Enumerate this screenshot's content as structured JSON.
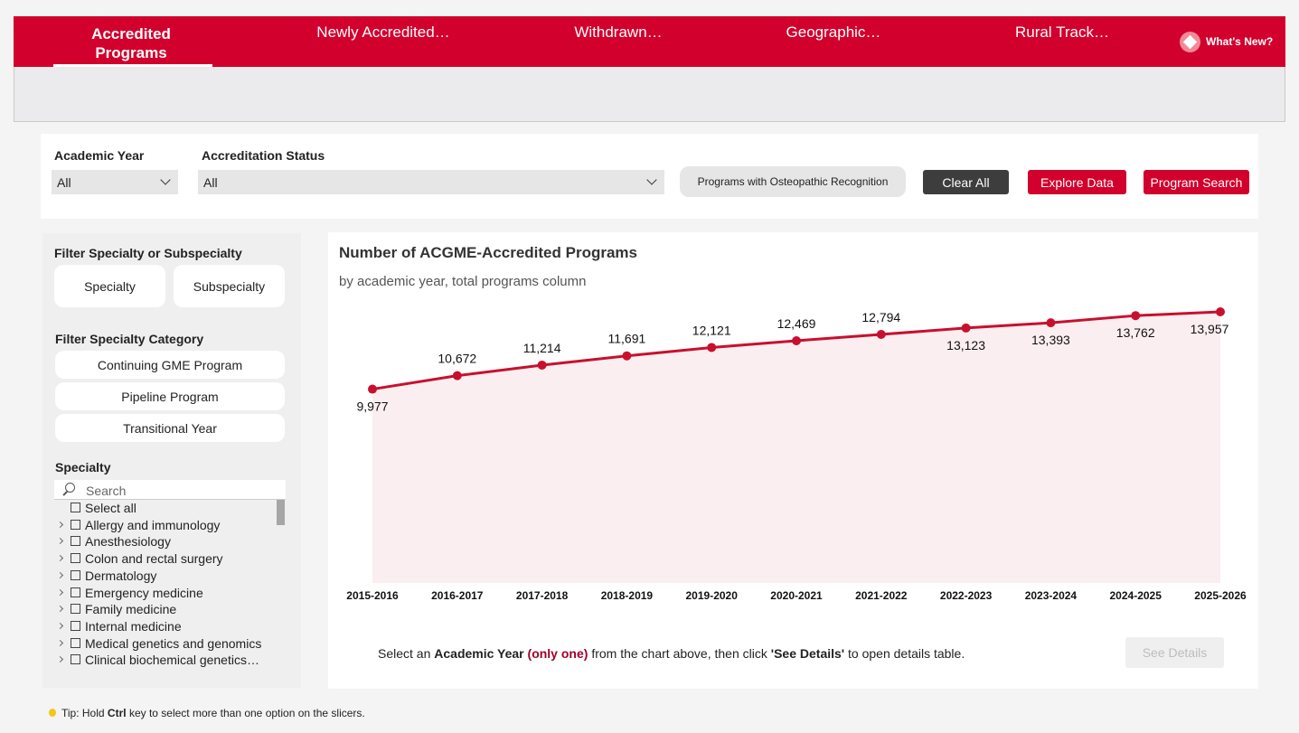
{
  "nav": {
    "tabs": [
      "Accredited Programs",
      "Newly Accredited…",
      "Withdrawn…",
      "Geographic…",
      "Rural Track…"
    ],
    "whats_new": "What's New?"
  },
  "filters": {
    "academic_year": {
      "label": "Academic Year",
      "value": "All"
    },
    "accreditation_status": {
      "label": "Accreditation Status",
      "value": "All"
    },
    "buttons": [
      "Programs with Osteopathic Recognition",
      "Clear All",
      "Explore Data",
      "Program Search"
    ]
  },
  "sidebar": {
    "filter_type": {
      "title": "Filter Specialty or Subspecialty",
      "options": [
        "Specialty",
        "Subspecialty"
      ]
    },
    "category": {
      "title": "Filter Specialty Category",
      "options": [
        "Continuing GME Program",
        "Pipeline Program",
        "Transitional Year"
      ]
    },
    "specialty": {
      "title": "Specialty",
      "search_placeholder": "Search",
      "items": [
        "Select all",
        "Allergy and immunology",
        "Anesthesiology",
        "Colon and rectal surgery",
        "Dermatology",
        "Emergency medicine",
        "Family medicine",
        "Internal medicine",
        "Medical genetics and genomics",
        "Clinical biochemical genetics…"
      ]
    }
  },
  "chart_data": {
    "type": "line",
    "title": "Number of ACGME-Accredited Programs",
    "subtitle": "by academic year, total programs column",
    "categories": [
      "2015-2016",
      "2016-2017",
      "2017-2018",
      "2018-2019",
      "2019-2020",
      "2020-2021",
      "2021-2022",
      "2022-2023",
      "2023-2024",
      "2024-2025",
      "2025-2026"
    ],
    "values": [
      9977,
      10672,
      11214,
      11691,
      12121,
      12469,
      12794,
      13123,
      13393,
      13762,
      13957
    ],
    "value_labels": [
      "9,977",
      "10,672",
      "11,214",
      "11,691",
      "12,121",
      "12,469",
      "12,794",
      "13,123",
      "13,393",
      "13,762",
      "13,957"
    ],
    "color": "#c8102e",
    "area_color": "#fbeef0"
  },
  "details": {
    "instruction": [
      "Select an",
      "Academic Year",
      "(only one)",
      "from the chart above, then click",
      "'See Details'",
      "to open details table."
    ],
    "button": "See Details"
  },
  "tip": [
    "Tip: Hold",
    "Ctrl",
    "key to select more than one option on the slicers."
  ]
}
